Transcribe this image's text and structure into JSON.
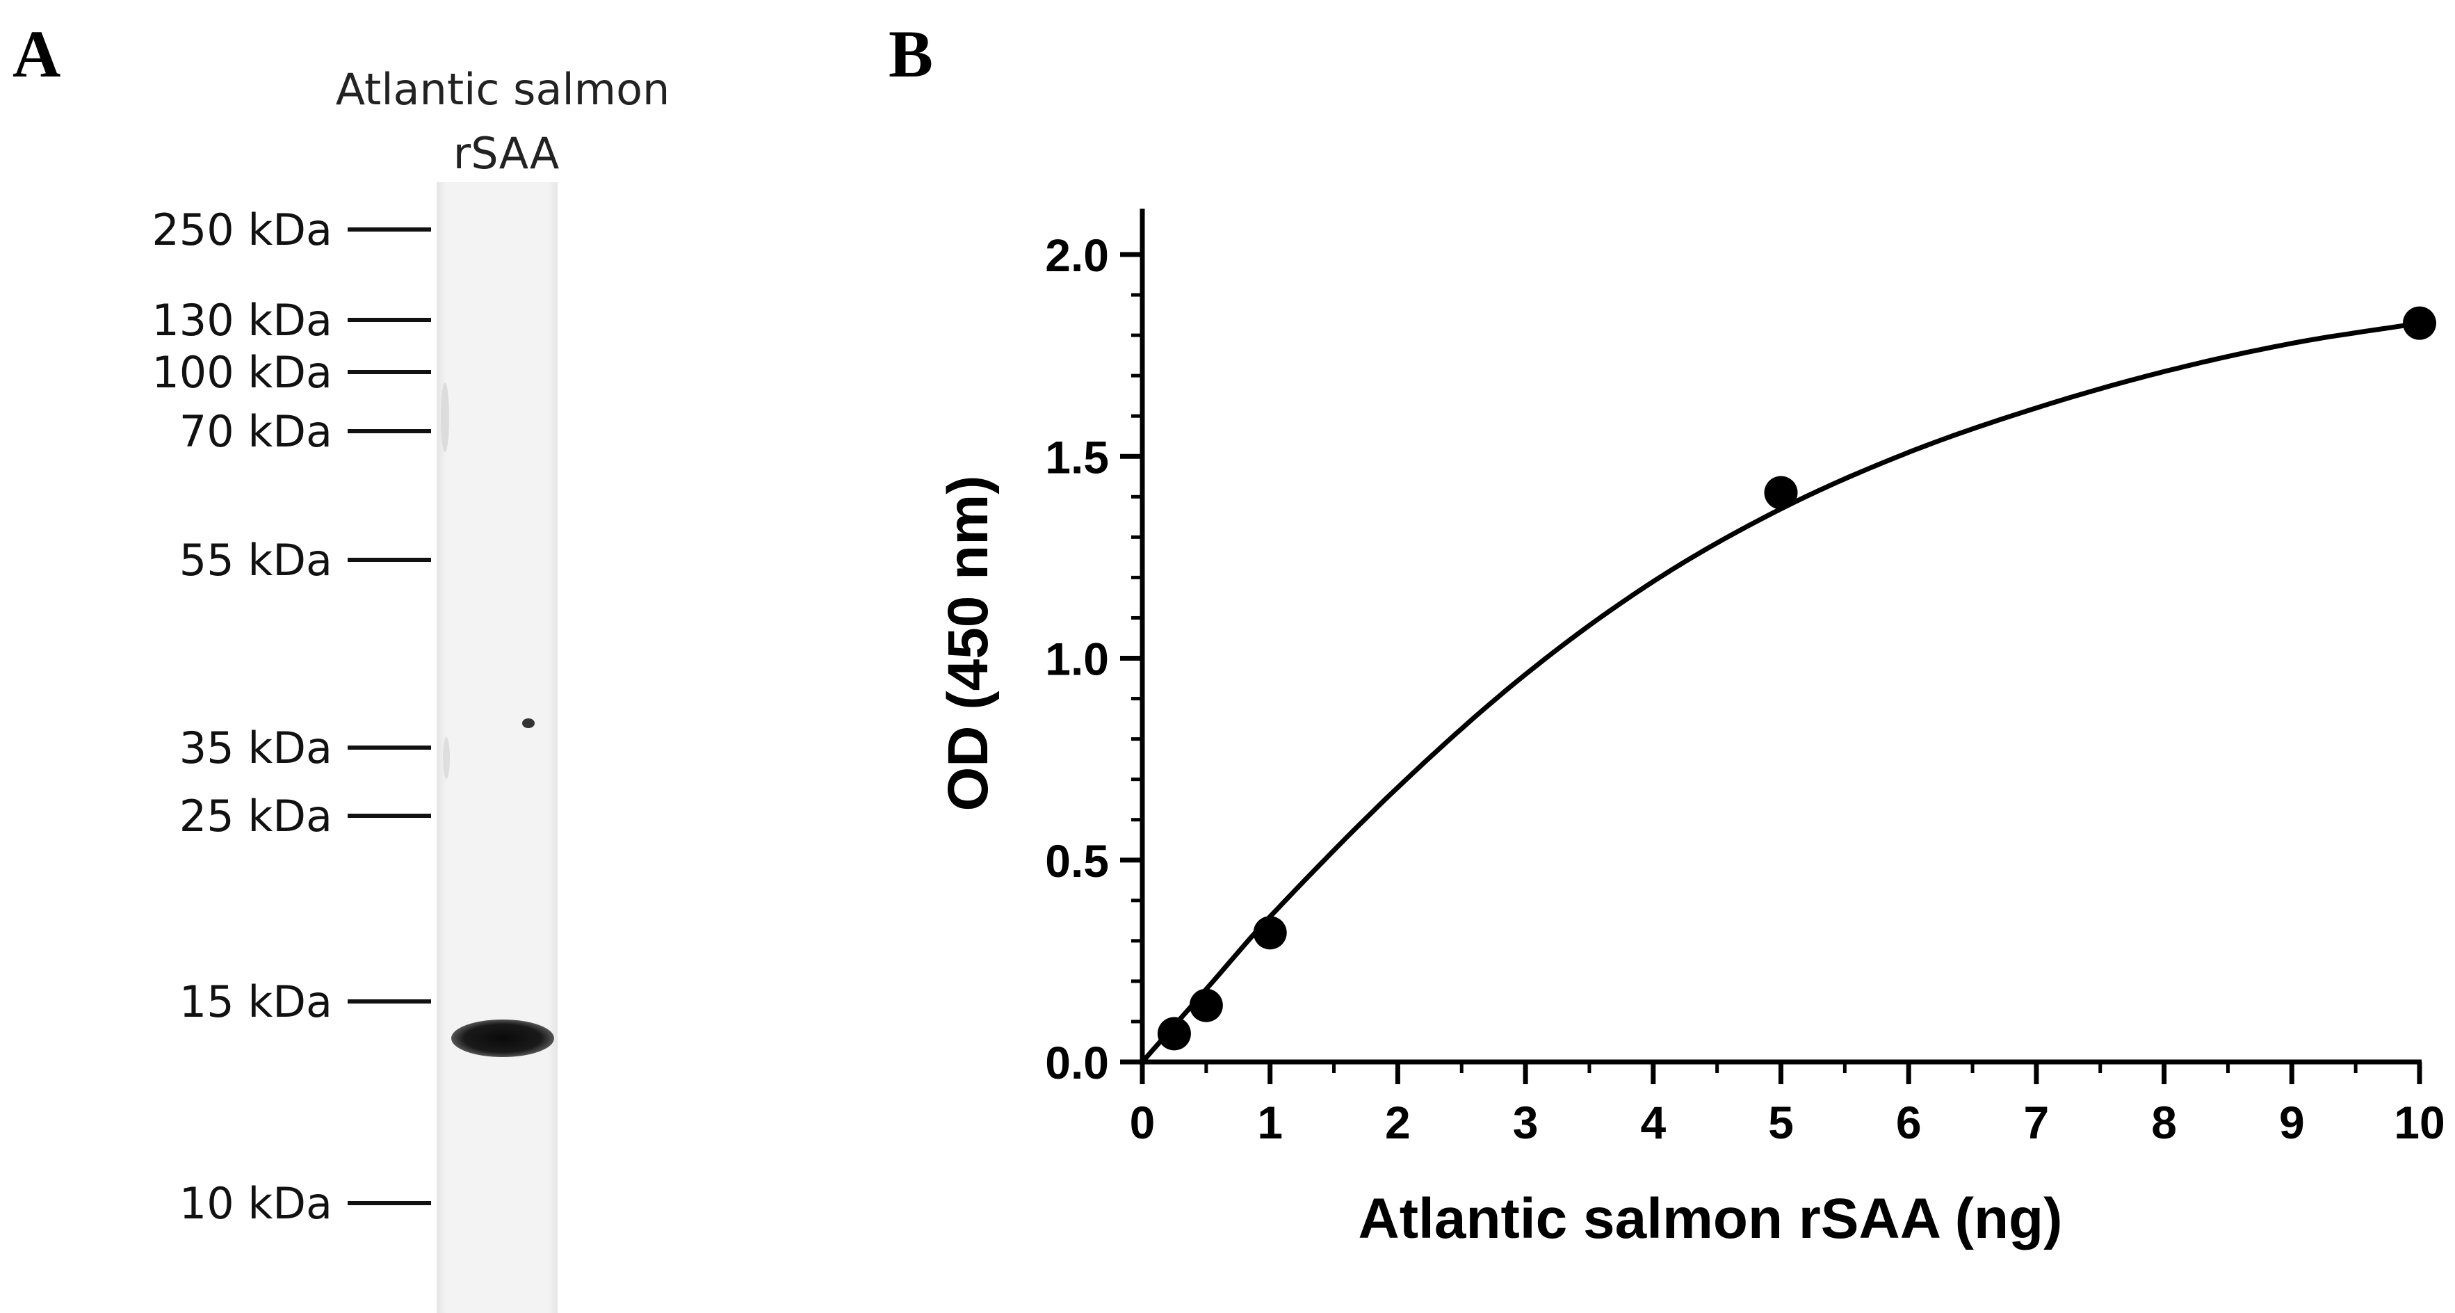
{
  "panels": {
    "a": {
      "letter": "A",
      "lane_title_line1": "Atlantic salmon",
      "lane_title_line2": "rSAA",
      "markers": [
        {
          "label": "250 kDa"
        },
        {
          "label": "130 kDa"
        },
        {
          "label": "100 kDa"
        },
        {
          "label": "70 kDa"
        },
        {
          "label": "55 kDa"
        },
        {
          "label": "35 kDa"
        },
        {
          "label": "25 kDa"
        },
        {
          "label": "15 kDa"
        },
        {
          "label": "10 kDa"
        }
      ]
    },
    "b": {
      "letter": "B"
    }
  },
  "chart_data": {
    "type": "scatter",
    "title": "",
    "xlabel": "Atlantic salmon rSAA (ng)",
    "ylabel": "OD (450 nm)",
    "xlim": [
      0,
      10
    ],
    "ylim": [
      0,
      2.0
    ],
    "x_ticks": [
      0,
      1,
      2,
      3,
      4,
      5,
      6,
      7,
      8,
      9,
      10
    ],
    "y_ticks": [
      "0.0",
      "0.5",
      "1.0",
      "1.5",
      "2.0"
    ],
    "grid": false,
    "legend": "none",
    "series": [
      {
        "marker": "filled-circle",
        "color": "#000000",
        "points": [
          {
            "x": 0.25,
            "y": 0.07
          },
          {
            "x": 0.5,
            "y": 0.14
          },
          {
            "x": 1,
            "y": 0.32
          },
          {
            "x": 5,
            "y": 1.41
          },
          {
            "x": 10,
            "y": 1.83
          }
        ]
      }
    ],
    "fit_curve": {
      "type": "saturating",
      "points": [
        {
          "x": 0,
          "y": 0
        },
        {
          "x": 0.5,
          "y": 0.18
        },
        {
          "x": 1,
          "y": 0.36
        },
        {
          "x": 2,
          "y": 0.68
        },
        {
          "x": 3,
          "y": 0.96
        },
        {
          "x": 4,
          "y": 1.19
        },
        {
          "x": 5,
          "y": 1.37
        },
        {
          "x": 6,
          "y": 1.51
        },
        {
          "x": 7,
          "y": 1.62
        },
        {
          "x": 8,
          "y": 1.71
        },
        {
          "x": 9,
          "y": 1.78
        },
        {
          "x": 10,
          "y": 1.83
        }
      ]
    }
  }
}
